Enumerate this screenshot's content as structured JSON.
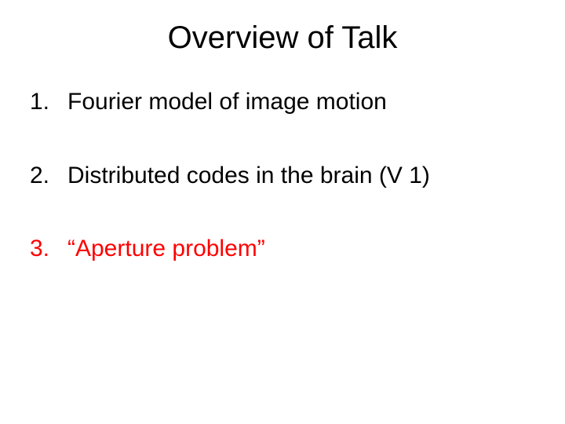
{
  "title": "Overview of Talk",
  "title_fontsize": 40,
  "title_color": "#000000",
  "background_color": "#ffffff",
  "body_fontsize": 30,
  "body_color_default": "#000000",
  "body_color_highlight": "#ff0000",
  "items": [
    {
      "n": "1.",
      "text": "Fourier model of image motion",
      "color": "#000000"
    },
    {
      "n": "2.",
      "text": "Distributed codes in the brain (V 1)",
      "color": "#000000"
    },
    {
      "n": "3.",
      "text": "“Aperture problem”",
      "color": "#ff0000"
    }
  ]
}
